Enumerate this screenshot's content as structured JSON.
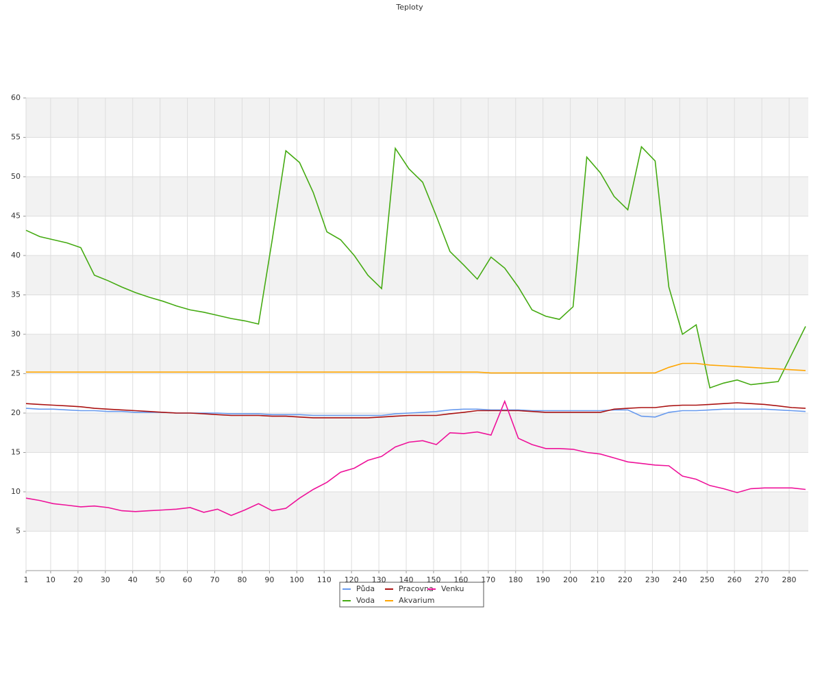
{
  "chart_data": {
    "type": "line",
    "title": "Teploty",
    "x": [
      1,
      6,
      11,
      16,
      21,
      26,
      31,
      36,
      41,
      46,
      51,
      56,
      61,
      66,
      71,
      76,
      81,
      86,
      91,
      96,
      101,
      106,
      111,
      116,
      121,
      126,
      131,
      136,
      141,
      146,
      151,
      156,
      161,
      166,
      171,
      176,
      181,
      186,
      191,
      196,
      201,
      206,
      211,
      216,
      221,
      226,
      231,
      236,
      241,
      246,
      251,
      256,
      261,
      266,
      271,
      276,
      281,
      286
    ],
    "xlim": [
      1,
      287
    ],
    "xticks": [
      1,
      10,
      20,
      30,
      40,
      50,
      60,
      70,
      80,
      90,
      100,
      110,
      120,
      130,
      140,
      150,
      160,
      170,
      180,
      190,
      200,
      210,
      220,
      230,
      240,
      250,
      260,
      270,
      280
    ],
    "ylim": [
      0,
      60
    ],
    "yticks": [
      5,
      10,
      15,
      20,
      25,
      30,
      35,
      40,
      45,
      50,
      55,
      60
    ],
    "grid": true,
    "legend": "bottom",
    "series": [
      {
        "name": "Půda",
        "color": "#6699ee",
        "values": [
          20.6,
          20.5,
          20.5,
          20.4,
          20.3,
          20.3,
          20.2,
          20.2,
          20.1,
          20.1,
          20.1,
          20.0,
          20.0,
          20.0,
          20.0,
          19.9,
          19.9,
          19.9,
          19.8,
          19.8,
          19.8,
          19.7,
          19.7,
          19.7,
          19.7,
          19.7,
          19.7,
          19.9,
          20.0,
          20.1,
          20.2,
          20.4,
          20.5,
          20.5,
          20.4,
          20.4,
          20.4,
          20.3,
          20.3,
          20.3,
          20.3,
          20.3,
          20.3,
          20.4,
          20.4,
          19.6,
          19.5,
          20.1,
          20.3,
          20.3,
          20.4,
          20.5,
          20.5,
          20.5,
          20.5,
          20.4,
          20.3,
          20.2
        ]
      },
      {
        "name": "Voda",
        "color": "#44aa11",
        "values": [
          43.2,
          42.4,
          42.0,
          41.6,
          41.0,
          37.5,
          36.8,
          36.0,
          35.3,
          34.7,
          34.2,
          33.6,
          33.1,
          32.8,
          32.4,
          32.0,
          31.7,
          31.3,
          42.0,
          53.3,
          51.8,
          48.0,
          43.0,
          42.0,
          40.0,
          37.5,
          35.8,
          53.6,
          51.0,
          49.3,
          45.0,
          40.5,
          38.8,
          37.0,
          39.8,
          38.4,
          36.0,
          33.1,
          32.3,
          31.9,
          33.5,
          52.5,
          50.5,
          47.5,
          45.8,
          53.8,
          52.0,
          36.0,
          30.0,
          31.2,
          23.2,
          23.8,
          24.2,
          23.6,
          23.8,
          24.0,
          27.5,
          31.0
        ]
      },
      {
        "name": "Pracovna",
        "color": "#aa1111",
        "values": [
          21.2,
          21.1,
          21.0,
          20.9,
          20.8,
          20.6,
          20.5,
          20.4,
          20.3,
          20.2,
          20.1,
          20.0,
          20.0,
          19.9,
          19.8,
          19.7,
          19.7,
          19.7,
          19.6,
          19.6,
          19.5,
          19.4,
          19.4,
          19.4,
          19.4,
          19.4,
          19.5,
          19.6,
          19.7,
          19.7,
          19.7,
          19.9,
          20.1,
          20.3,
          20.3,
          20.3,
          20.3,
          20.2,
          20.1,
          20.1,
          20.1,
          20.1,
          20.1,
          20.5,
          20.6,
          20.7,
          20.7,
          20.9,
          21.0,
          21.0,
          21.1,
          21.2,
          21.3,
          21.2,
          21.1,
          20.9,
          20.7,
          20.6
        ]
      },
      {
        "name": "Akvarium",
        "color": "#ffa500",
        "values": [
          25.2,
          25.2,
          25.2,
          25.2,
          25.2,
          25.2,
          25.2,
          25.2,
          25.2,
          25.2,
          25.2,
          25.2,
          25.2,
          25.2,
          25.2,
          25.2,
          25.2,
          25.2,
          25.2,
          25.2,
          25.2,
          25.2,
          25.2,
          25.2,
          25.2,
          25.2,
          25.2,
          25.2,
          25.2,
          25.2,
          25.2,
          25.2,
          25.2,
          25.2,
          25.1,
          25.1,
          25.1,
          25.1,
          25.1,
          25.1,
          25.1,
          25.1,
          25.1,
          25.1,
          25.1,
          25.1,
          25.1,
          25.8,
          26.3,
          26.3,
          26.1,
          26.0,
          25.9,
          25.8,
          25.7,
          25.6,
          25.5,
          25.4
        ]
      },
      {
        "name": "Venku",
        "color": "#ee1199",
        "values": [
          9.2,
          8.9,
          8.5,
          8.3,
          8.1,
          8.2,
          8.0,
          7.6,
          7.5,
          7.6,
          7.7,
          7.8,
          8.0,
          7.4,
          7.8,
          7.0,
          7.7,
          8.5,
          7.6,
          7.9,
          9.2,
          10.3,
          11.2,
          12.5,
          13.0,
          14.0,
          14.5,
          15.7,
          16.3,
          16.5,
          16.0,
          17.5,
          17.4,
          17.6,
          17.2,
          21.5,
          16.8,
          16.0,
          15.5,
          15.5,
          15.4,
          15.0,
          14.8,
          14.3,
          13.8,
          13.6,
          13.4,
          13.3,
          12.0,
          11.6,
          10.8,
          10.4,
          9.9,
          10.4,
          10.5,
          10.5,
          10.5,
          10.3
        ]
      }
    ]
  }
}
